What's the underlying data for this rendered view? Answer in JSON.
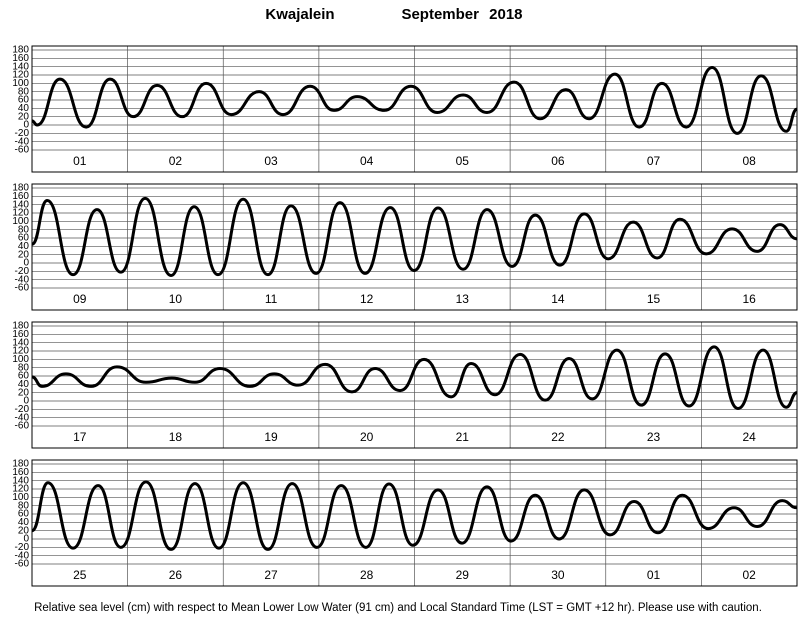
{
  "station": "Kwajalein",
  "period": "September 2018",
  "note": "Relative sea level (cm) with respect to Mean Lower Low Water (91 cm) and Local Standard Time (LST = GMT +12 hr). Please use with caution.",
  "chart_data": [
    {
      "type": "line",
      "color": "#000000",
      "grid": true,
      "categories": [
        "01",
        "02",
        "03",
        "04",
        "05",
        "06",
        "07",
        "08"
      ],
      "xlim": [
        0,
        192
      ],
      "xticks": [
        0,
        24,
        48,
        72,
        96,
        120,
        144,
        168,
        192
      ],
      "ylim": [
        -60,
        180
      ],
      "yticks": [
        180,
        160,
        140,
        120,
        100,
        80,
        60,
        40,
        20,
        0,
        -20,
        -40,
        -60
      ],
      "x": [
        0,
        1.3,
        7.0,
        13.6,
        19.6,
        25.4,
        31.4,
        37.7,
        43.7,
        50.0,
        57.0,
        63.0,
        69.8,
        75.8,
        81.6,
        88.4,
        95.1,
        101.7,
        108.2,
        114.2,
        121.0,
        127.5,
        134.0,
        139.8,
        146.3,
        152.4,
        158.1,
        164.2,
        170.7,
        177.0,
        183.0,
        189.3,
        192
      ],
      "values": [
        10,
        0,
        110,
        -5,
        110,
        20,
        95,
        20,
        100,
        25,
        80,
        25,
        93,
        35,
        68,
        35,
        93,
        30,
        72,
        30,
        103,
        15,
        85,
        15,
        122,
        -5,
        100,
        -5,
        138,
        -20,
        118,
        -15,
        38
      ]
    },
    {
      "type": "line",
      "color": "#000000",
      "grid": true,
      "categories": [
        "09",
        "10",
        "11",
        "12",
        "13",
        "14",
        "15",
        "16"
      ],
      "xlim": [
        0,
        192
      ],
      "xticks": [
        0,
        24,
        48,
        72,
        96,
        120,
        144,
        168,
        192
      ],
      "ylim": [
        -60,
        180
      ],
      "yticks": [
        180,
        160,
        140,
        120,
        100,
        80,
        60,
        40,
        20,
        0,
        -20,
        -40,
        -60
      ],
      "x": [
        0,
        3.8,
        10.3,
        16.3,
        22.3,
        28.4,
        34.9,
        40.7,
        46.7,
        53.0,
        59.2,
        65.0,
        71.3,
        77.3,
        83.6,
        89.9,
        95.9,
        101.9,
        108.2,
        114.2,
        120.5,
        126.3,
        132.5,
        138.6,
        144.6,
        150.9,
        156.9,
        162.6,
        169.2,
        175.7,
        182.0,
        187.7,
        192
      ],
      "values": [
        45,
        150,
        -28,
        128,
        -22,
        155,
        -30,
        135,
        -28,
        153,
        -28,
        137,
        -25,
        145,
        -25,
        133,
        -18,
        132,
        -15,
        128,
        -8,
        115,
        -5,
        118,
        10,
        98,
        12,
        105,
        22,
        82,
        28,
        92,
        58
      ]
    },
    {
      "type": "line",
      "color": "#000000",
      "grid": true,
      "categories": [
        "17",
        "18",
        "19",
        "20",
        "21",
        "22",
        "23",
        "24"
      ],
      "xlim": [
        0,
        192
      ],
      "xticks": [
        0,
        24,
        48,
        72,
        96,
        120,
        144,
        168,
        192
      ],
      "ylim": [
        -60,
        180
      ],
      "yticks": [
        180,
        160,
        140,
        120,
        100,
        80,
        60,
        40,
        20,
        0,
        -20,
        -40,
        -60
      ],
      "x": [
        0,
        2.5,
        8.5,
        14.8,
        21.3,
        28.6,
        35.1,
        40.9,
        47.2,
        54.7,
        60.8,
        66.8,
        73.6,
        80.3,
        86.1,
        92.4,
        98.4,
        105.2,
        110.2,
        116.2,
        122.5,
        128.8,
        134.8,
        140.6,
        146.8,
        152.9,
        158.9,
        164.9,
        171.2,
        177.2,
        183.5,
        189.3,
        192
      ],
      "values": [
        58,
        35,
        65,
        35,
        82,
        45,
        55,
        45,
        78,
        35,
        65,
        38,
        88,
        22,
        78,
        25,
        100,
        10,
        90,
        15,
        112,
        2,
        102,
        5,
        122,
        -10,
        113,
        -12,
        130,
        -18,
        122,
        -15,
        20
      ]
    },
    {
      "type": "line",
      "color": "#000000",
      "grid": true,
      "categories": [
        "25",
        "26",
        "27",
        "28",
        "29",
        "30",
        "01",
        "02"
      ],
      "xlim": [
        0,
        192
      ],
      "xticks": [
        0,
        24,
        48,
        72,
        96,
        120,
        144,
        168,
        192
      ],
      "ylim": [
        -60,
        180
      ],
      "yticks": [
        180,
        160,
        140,
        120,
        100,
        80,
        60,
        40,
        20,
        0,
        -20,
        -40,
        -60
      ],
      "x": [
        0,
        4.0,
        10.3,
        16.6,
        22.3,
        28.6,
        34.9,
        40.9,
        46.9,
        53.0,
        59.2,
        65.3,
        71.5,
        77.6,
        83.8,
        89.6,
        95.6,
        101.9,
        107.9,
        114.2,
        120.2,
        126.3,
        132.3,
        138.6,
        145.1,
        151.1,
        157.1,
        163.2,
        169.7,
        176.2,
        182.0,
        188.3,
        192
      ],
      "values": [
        20,
        135,
        -22,
        128,
        -20,
        137,
        -25,
        133,
        -22,
        135,
        -25,
        133,
        -20,
        128,
        -20,
        132,
        -15,
        118,
        -10,
        125,
        -5,
        105,
        0,
        118,
        10,
        90,
        15,
        105,
        25,
        75,
        30,
        92,
        75
      ]
    }
  ]
}
